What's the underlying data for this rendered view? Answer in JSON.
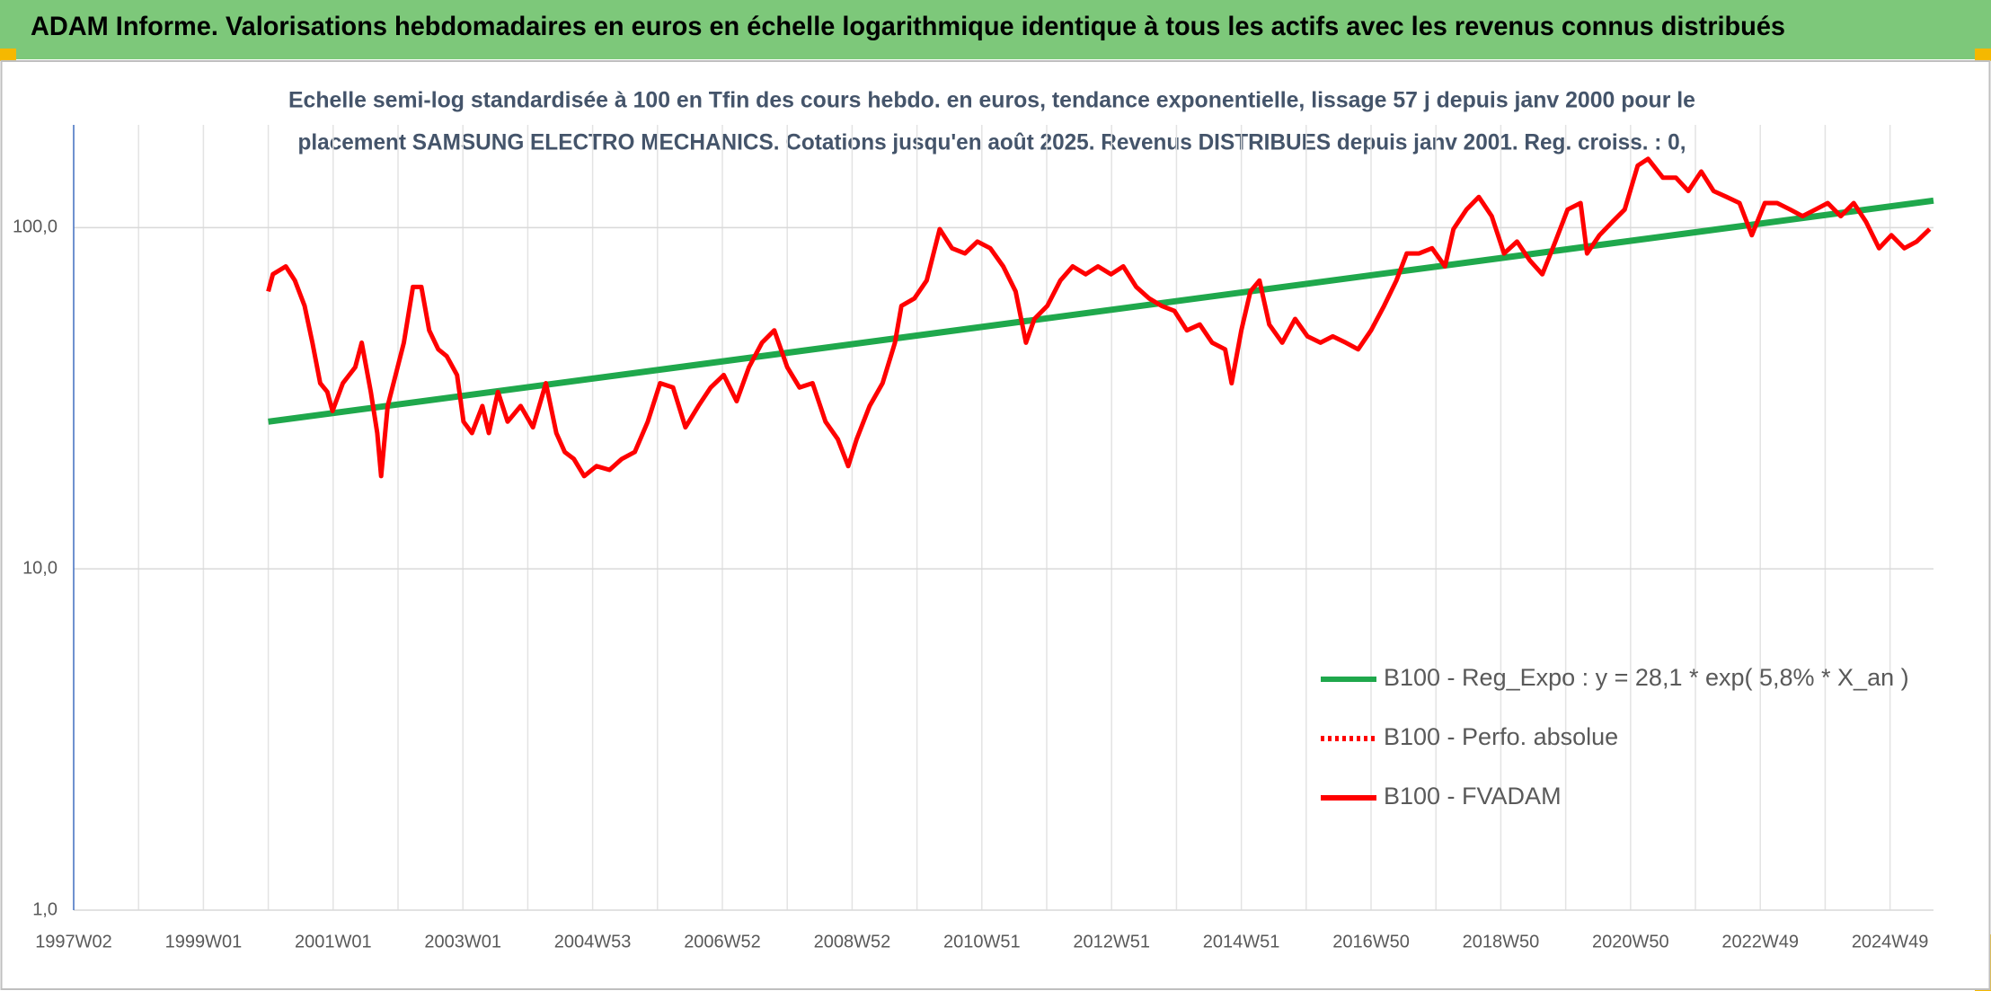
{
  "chart_data": {
    "type": "line",
    "title": "ADAM Informe. Valorisations hebdomadaires en euros en échelle logarithmique identique à tous les actifs avec les revenus connus distribués",
    "subtitle": [
      "Echelle semi-log standardisée à 100 en Tfin des cours hebdo. en euros, tendance exponentielle, lissage 57 j depuis janv 2000 pour le",
      "placement SAMSUNG ELECTRO MECHANICS. Cotations jusqu'en août 2025. Revenus DISTRIBUES depuis janv 2001. Reg. croiss. : 0,"
    ],
    "log_scale": true,
    "grid": true,
    "legend": "lower right",
    "xlim": [
      1997,
      2025.67
    ],
    "xticks": [
      {
        "value": 1997,
        "label": "1997W02"
      },
      {
        "value": 1999,
        "label": "1999W01"
      },
      {
        "value": 2001,
        "label": "2001W01"
      },
      {
        "value": 2003,
        "label": "2003W01"
      },
      {
        "value": 2005,
        "label": "2004W53"
      },
      {
        "value": 2007,
        "label": "2006W52"
      },
      {
        "value": 2009,
        "label": "2008W52"
      },
      {
        "value": 2011,
        "label": "2010W51"
      },
      {
        "value": 2013,
        "label": "2012W51"
      },
      {
        "value": 2015,
        "label": "2014W51"
      },
      {
        "value": 2017,
        "label": "2016W50"
      },
      {
        "value": 2019,
        "label": "2018W50"
      },
      {
        "value": 2021,
        "label": "2020W50"
      },
      {
        "value": 2023,
        "label": "2022W49"
      },
      {
        "value": 2025,
        "label": "2024W49"
      }
    ],
    "ylim": [
      1,
      200
    ],
    "yticks": [
      {
        "value": 1,
        "label": "1,0"
      },
      {
        "value": 10,
        "label": "10,0"
      },
      {
        "value": 100,
        "label": "100,0"
      }
    ],
    "series": [
      {
        "name": "B100 - Reg_Expo : y = 28,1 * exp( 5,8% *  X_an )",
        "color": "#1fa84c",
        "line_style": "solid",
        "x": [
          2000.0,
          2025.67
        ],
        "values": [
          27,
          120
        ]
      },
      {
        "name": "B100 - Perfo. absolue",
        "color": "#ff0000",
        "line_style": "dotted",
        "x": [],
        "values": []
      },
      {
        "name": "B100 - FVADAM",
        "color": "#ff0000",
        "line_style": "solid",
        "x": [
          2000.0,
          2000.07,
          2000.27,
          2000.41,
          2000.56,
          2000.68,
          2000.8,
          2000.91,
          2000.99,
          2001.15,
          2001.34,
          2001.44,
          2001.58,
          2001.68,
          2001.74,
          2001.84,
          2001.93,
          2002.09,
          2002.23,
          2002.36,
          2002.48,
          2002.62,
          2002.75,
          2002.91,
          2003.01,
          2003.14,
          2003.3,
          2003.4,
          2003.54,
          2003.69,
          2003.89,
          2004.08,
          2004.28,
          2004.44,
          2004.57,
          2004.71,
          2004.87,
          2005.06,
          2005.26,
          2005.45,
          2005.65,
          2005.85,
          2006.04,
          2006.24,
          2006.43,
          2006.63,
          2006.82,
          2007.02,
          2007.22,
          2007.41,
          2007.61,
          2007.8,
          2008.0,
          2008.19,
          2008.39,
          2008.59,
          2008.78,
          2008.94,
          2009.07,
          2009.27,
          2009.47,
          2009.66,
          2009.76,
          2009.96,
          2010.15,
          2010.35,
          2010.54,
          2010.74,
          2010.93,
          2011.13,
          2011.33,
          2011.52,
          2011.68,
          2011.81,
          2012.01,
          2012.21,
          2012.4,
          2012.6,
          2012.79,
          2012.99,
          2013.18,
          2013.38,
          2013.58,
          2013.77,
          2013.97,
          2014.16,
          2014.36,
          2014.55,
          2014.75,
          2014.85,
          2015.0,
          2015.14,
          2015.28,
          2015.43,
          2015.63,
          2015.83,
          2016.02,
          2016.22,
          2016.41,
          2016.61,
          2016.8,
          2017.0,
          2017.2,
          2017.39,
          2017.55,
          2017.74,
          2017.94,
          2018.14,
          2018.27,
          2018.47,
          2018.66,
          2018.86,
          2019.05,
          2019.25,
          2019.45,
          2019.64,
          2019.84,
          2020.03,
          2020.23,
          2020.33,
          2020.52,
          2020.72,
          2020.91,
          2021.11,
          2021.27,
          2021.5,
          2021.7,
          2021.89,
          2022.09,
          2022.28,
          2022.48,
          2022.68,
          2022.87,
          2023.07,
          2023.26,
          2023.46,
          2023.65,
          2023.85,
          2024.04,
          2024.24,
          2024.44,
          2024.63,
          2024.83,
          2025.02,
          2025.22,
          2025.41,
          2025.61
        ],
        "values": [
          65,
          73,
          77,
          70,
          59,
          46,
          35,
          33,
          29,
          35,
          39,
          46,
          33,
          25,
          18.7,
          30,
          35,
          46,
          67,
          67,
          50,
          44,
          42,
          37,
          27,
          25,
          30,
          25,
          33,
          27,
          30,
          26,
          35,
          25,
          22,
          21,
          18.7,
          20,
          19.5,
          21,
          22,
          27,
          35,
          34,
          26,
          30,
          34,
          37,
          31,
          39,
          46,
          50,
          39,
          34,
          35,
          27,
          24,
          20,
          24,
          30,
          35,
          46,
          59,
          62,
          70,
          99,
          87,
          84,
          91,
          87,
          77,
          65,
          46,
          54,
          59,
          70,
          77,
          73,
          77,
          73,
          77,
          67,
          62,
          59,
          57,
          50,
          52,
          46,
          44,
          35,
          50,
          65,
          70,
          52,
          46,
          54,
          48,
          46,
          48,
          46,
          44,
          50,
          59,
          70,
          84,
          84,
          87,
          77,
          99,
          113,
          123,
          108,
          84,
          91,
          80,
          73,
          91,
          113,
          118,
          84,
          95,
          104,
          113,
          152,
          159,
          140,
          140,
          128,
          146,
          128,
          123,
          118,
          95,
          118,
          118,
          113,
          108,
          113,
          118,
          108,
          118,
          104,
          87,
          95,
          87,
          91,
          99
        ]
      }
    ]
  }
}
